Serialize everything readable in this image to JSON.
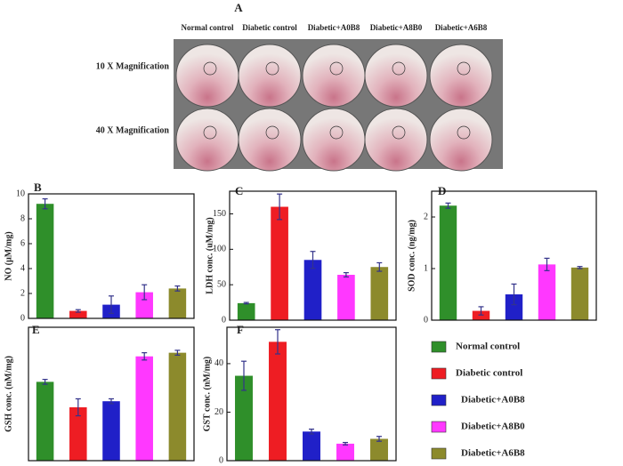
{
  "panel_a": {
    "label": "A",
    "columns": [
      "Normal control",
      "Diabetic control",
      "Diabetic+A0B8",
      "Diabetic+A8B0",
      "Diabetic+A6B8"
    ],
    "rows": [
      "10 X Magnification",
      "40 X Magnification"
    ]
  },
  "chart_data": [
    {
      "type": "bar",
      "label": "B",
      "ylabel": "NO (μM/mg)",
      "values": [
        9.2,
        0.6,
        1.1,
        2.1,
        2.4
      ],
      "errors": [
        0.4,
        0.1,
        0.7,
        0.6,
        0.2
      ],
      "ylim": [
        0,
        10
      ],
      "yticks": [
        0,
        2,
        4,
        6,
        8,
        10
      ]
    },
    {
      "type": "bar",
      "label": "C",
      "ylabel": "LDH conc. (uM/mg)",
      "values": [
        24,
        160,
        85,
        64,
        75
      ],
      "errors": [
        1,
        18,
        12,
        3,
        6
      ],
      "ylim": [
        0,
        182
      ],
      "yticks": [
        0,
        50,
        100,
        150
      ]
    },
    {
      "type": "bar",
      "label": "D",
      "ylabel": "SOD conc. (ng/mg)",
      "values": [
        2.22,
        0.18,
        0.5,
        1.08,
        1.02
      ],
      "errors": [
        0.05,
        0.08,
        0.2,
        0.12,
        0.02
      ],
      "ylim": [
        0,
        2.5
      ],
      "yticks": [
        0,
        1,
        2
      ]
    },
    {
      "type": "bar",
      "label": "E",
      "ylabel": "GSH conc. (nM/mg)",
      "values": [
        6.5,
        4.4,
        4.9,
        8.6,
        8.9
      ],
      "errors": [
        0.2,
        0.7,
        0.2,
        0.3,
        0.2
      ],
      "ylim": [
        0,
        11
      ],
      "yticks": []
    },
    {
      "type": "bar",
      "label": "F",
      "ylabel": "GST conc. (nM/mg)",
      "values": [
        35,
        49,
        12,
        7,
        9
      ],
      "errors": [
        6,
        5,
        1,
        0.5,
        1
      ],
      "ylim": [
        0,
        55
      ],
      "yticks": [
        0,
        20,
        40
      ]
    }
  ],
  "legend": {
    "items": [
      {
        "name": "Normal control",
        "color": "#2f8f2a"
      },
      {
        "name": "Diabetic control",
        "color": "#ee1d23"
      },
      {
        "name": "Diabetic+A0B8",
        "color": "#2020c8"
      },
      {
        "name": "Diabetic+A8B0",
        "color": "#ff38ff"
      },
      {
        "name": "Diabetic+A6B8",
        "color": "#8c8a2c"
      }
    ]
  }
}
